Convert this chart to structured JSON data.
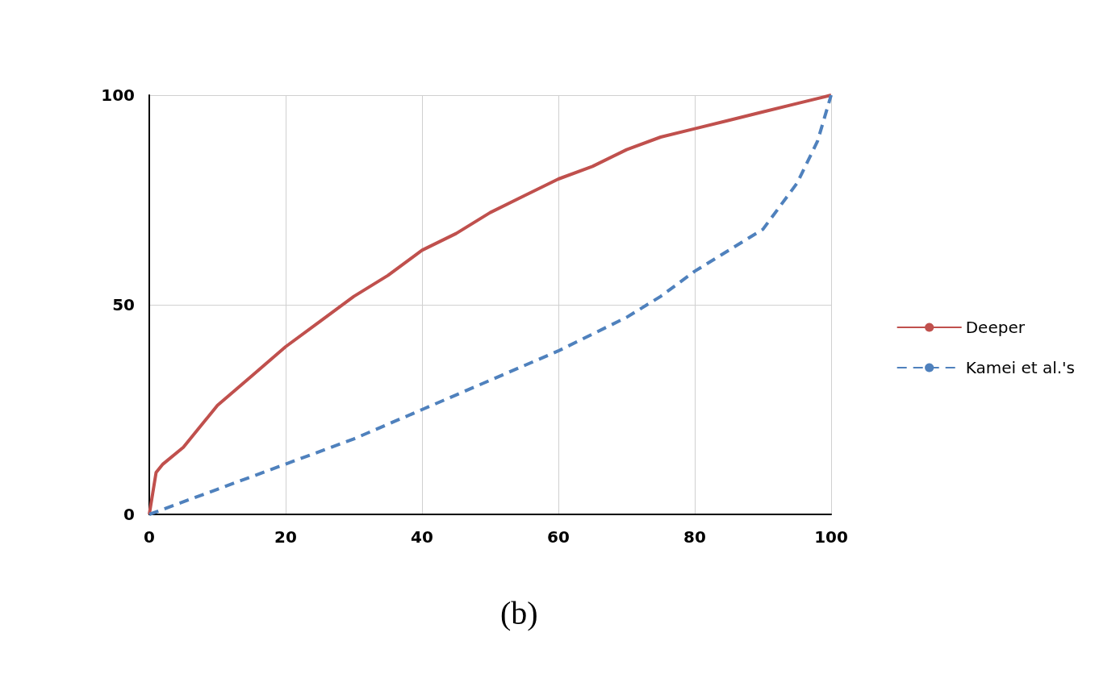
{
  "chart_data": {
    "type": "line",
    "x": [
      0,
      0.5,
      1,
      2,
      5,
      8,
      10,
      15,
      20,
      25,
      30,
      35,
      40,
      45,
      50,
      55,
      60,
      65,
      70,
      75,
      80,
      85,
      90,
      95,
      100
    ],
    "series": [
      {
        "name": "Deeper",
        "color": "#c0504d",
        "line_style": "solid",
        "values": [
          0,
          5,
          10,
          12,
          16,
          22,
          26,
          33,
          40,
          46,
          52,
          57,
          63,
          67,
          72,
          76,
          80,
          83,
          87,
          90,
          92,
          94,
          96,
          98,
          100
        ]
      },
      {
        "name": "Kamei et al.'s",
        "color": "#4f81bd",
        "line_style": "dashed",
        "x": [
          0,
          10,
          20,
          30,
          40,
          50,
          60,
          70,
          75,
          80,
          85,
          90,
          95,
          98,
          100
        ],
        "values": [
          0,
          6,
          12,
          18,
          25,
          32,
          39,
          47,
          52,
          58,
          63,
          68,
          79,
          89,
          100
        ]
      }
    ],
    "xlim": [
      0,
      100
    ],
    "xticks": [
      0,
      20,
      40,
      60,
      80,
      100
    ],
    "ylim": [
      0,
      100
    ],
    "yticks": [
      0,
      50,
      100
    ],
    "grid": true,
    "legend": "right",
    "marker": "none",
    "annotations": [
      "(b)"
    ]
  }
}
